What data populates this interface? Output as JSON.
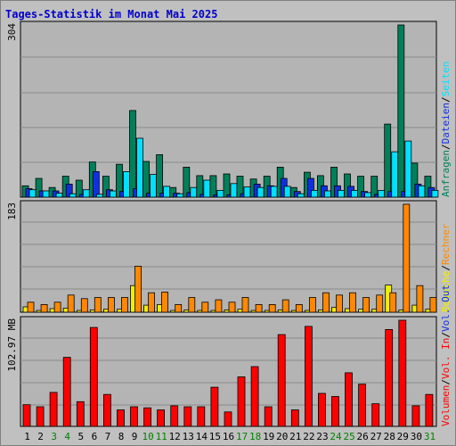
{
  "title": "Tages-Statistik im Monat Mai 2025",
  "colors": {
    "background": "#c0c0c0",
    "plot_bg": "#b4b4b4",
    "grid": "#8a8a8a",
    "title": "#0000cc",
    "anfragen": "#00805a",
    "dateien": "#1030e0",
    "seiten": "#00e0ff",
    "besuche": "#f0f000",
    "rechner": "#ff8800",
    "vol_in": "#ff0000",
    "vol_out": "#1030e0",
    "volumen": "#ff0000",
    "day_normal": "#000000",
    "day_weekend": "#008000"
  },
  "chart_data": [
    {
      "type": "bar",
      "name": "hits",
      "ymax_label": "304",
      "ylim": [
        0,
        304
      ],
      "x": [
        1,
        2,
        3,
        4,
        5,
        6,
        7,
        8,
        9,
        10,
        11,
        12,
        13,
        14,
        15,
        16,
        17,
        18,
        19,
        20,
        21,
        22,
        23,
        24,
        25,
        26,
        27,
        28,
        29,
        30,
        31
      ],
      "legend": [
        {
          "key": "anfragen",
          "text": "Anfragen"
        },
        {
          "key": "sep1",
          "text": "/"
        },
        {
          "key": "dateien",
          "text": "Dateien"
        },
        {
          "key": "sep2",
          "text": "/"
        },
        {
          "key": "seiten",
          "text": "Seiten"
        }
      ],
      "series": [
        {
          "name": "Anfragen",
          "color_key": "anfragen",
          "values": [
            20,
            33,
            17,
            37,
            30,
            62,
            37,
            58,
            153,
            63,
            75,
            17,
            53,
            38,
            38,
            41,
            37,
            32,
            37,
            53,
            17,
            44,
            38,
            53,
            41,
            37,
            37,
            129,
            304,
            60,
            37
          ]
        },
        {
          "name": "Dateien",
          "color_key": "dateien",
          "values": [
            15,
            11,
            11,
            23,
            5,
            45,
            13,
            10,
            15,
            7,
            7,
            7,
            8,
            5,
            4,
            4,
            6,
            23,
            20,
            33,
            10,
            33,
            20,
            20,
            19,
            10,
            5,
            10,
            10,
            23,
            17
          ]
        },
        {
          "name": "Seiten",
          "color_key": "seiten",
          "values": [
            13,
            11,
            7,
            6,
            13,
            5,
            11,
            45,
            104,
            40,
            19,
            6,
            17,
            30,
            12,
            24,
            18,
            17,
            19,
            19,
            6,
            12,
            11,
            12,
            12,
            8,
            12,
            80,
            99,
            20,
            12
          ]
        }
      ]
    },
    {
      "type": "bar",
      "name": "visits",
      "ymax_label": "183",
      "ylim": [
        0,
        183
      ],
      "legend": [
        {
          "key": "besuche",
          "text": "Besuche"
        },
        {
          "key": "sep3",
          "text": "/"
        },
        {
          "key": "rechner",
          "text": "Rechner"
        }
      ],
      "series": [
        {
          "name": "Besuche",
          "color_key": "besuche",
          "values": [
            9,
            3,
            6,
            7,
            3,
            4,
            5,
            5,
            45,
            12,
            13,
            3,
            4,
            3,
            3,
            4,
            5,
            3,
            3,
            4,
            3,
            3,
            4,
            8,
            6,
            5,
            5,
            46,
            4,
            12,
            5
          ]
        },
        {
          "name": "Rechner",
          "color_key": "rechner",
          "values": [
            17,
            13,
            17,
            29,
            23,
            25,
            25,
            25,
            78,
            33,
            34,
            13,
            25,
            17,
            21,
            17,
            25,
            13,
            13,
            21,
            13,
            25,
            33,
            29,
            33,
            25,
            29,
            33,
            183,
            45,
            25
          ]
        }
      ]
    },
    {
      "type": "bar",
      "name": "volume",
      "ymax_label": "102.97 MB",
      "ylim": [
        0,
        102.97
      ],
      "legend": [
        {
          "key": "volumen",
          "text": "Volumen"
        },
        {
          "key": "sep4",
          "text": "/"
        },
        {
          "key": "vol_in",
          "text": "Vol. In"
        },
        {
          "key": "sep5",
          "text": "/"
        },
        {
          "key": "vol_out",
          "text": "Vol. Out"
        }
      ],
      "series": [
        {
          "name": "Volumen",
          "color_key": "volumen",
          "values": [
            21,
            19,
            33,
            67,
            24,
            96,
            31,
            16,
            19,
            18,
            16,
            20,
            19,
            19,
            38,
            14,
            48,
            58,
            19,
            89,
            16,
            97,
            32,
            29,
            52,
            41,
            22,
            94,
            103,
            20,
            31
          ]
        }
      ]
    }
  ],
  "x_labels": [
    {
      "text": "1",
      "weekend": false
    },
    {
      "text": "2",
      "weekend": false
    },
    {
      "text": "3",
      "weekend": true
    },
    {
      "text": "4",
      "weekend": true
    },
    {
      "text": "5",
      "weekend": false
    },
    {
      "text": "6",
      "weekend": false
    },
    {
      "text": "7",
      "weekend": false
    },
    {
      "text": "8",
      "weekend": false
    },
    {
      "text": "9",
      "weekend": false
    },
    {
      "text": "10",
      "weekend": true
    },
    {
      "text": "11",
      "weekend": true
    },
    {
      "text": "12",
      "weekend": false
    },
    {
      "text": "13",
      "weekend": false
    },
    {
      "text": "14",
      "weekend": false
    },
    {
      "text": "15",
      "weekend": false
    },
    {
      "text": "16",
      "weekend": false
    },
    {
      "text": "17",
      "weekend": true
    },
    {
      "text": "18",
      "weekend": true
    },
    {
      "text": "19",
      "weekend": false
    },
    {
      "text": "20",
      "weekend": false
    },
    {
      "text": "21",
      "weekend": false
    },
    {
      "text": "22",
      "weekend": false
    },
    {
      "text": "23",
      "weekend": false
    },
    {
      "text": "24",
      "weekend": true
    },
    {
      "text": "25",
      "weekend": true
    },
    {
      "text": "26",
      "weekend": false
    },
    {
      "text": "27",
      "weekend": false
    },
    {
      "text": "28",
      "weekend": false
    },
    {
      "text": "29",
      "weekend": false
    },
    {
      "text": "30",
      "weekend": false
    },
    {
      "text": "31",
      "weekend": true
    }
  ]
}
